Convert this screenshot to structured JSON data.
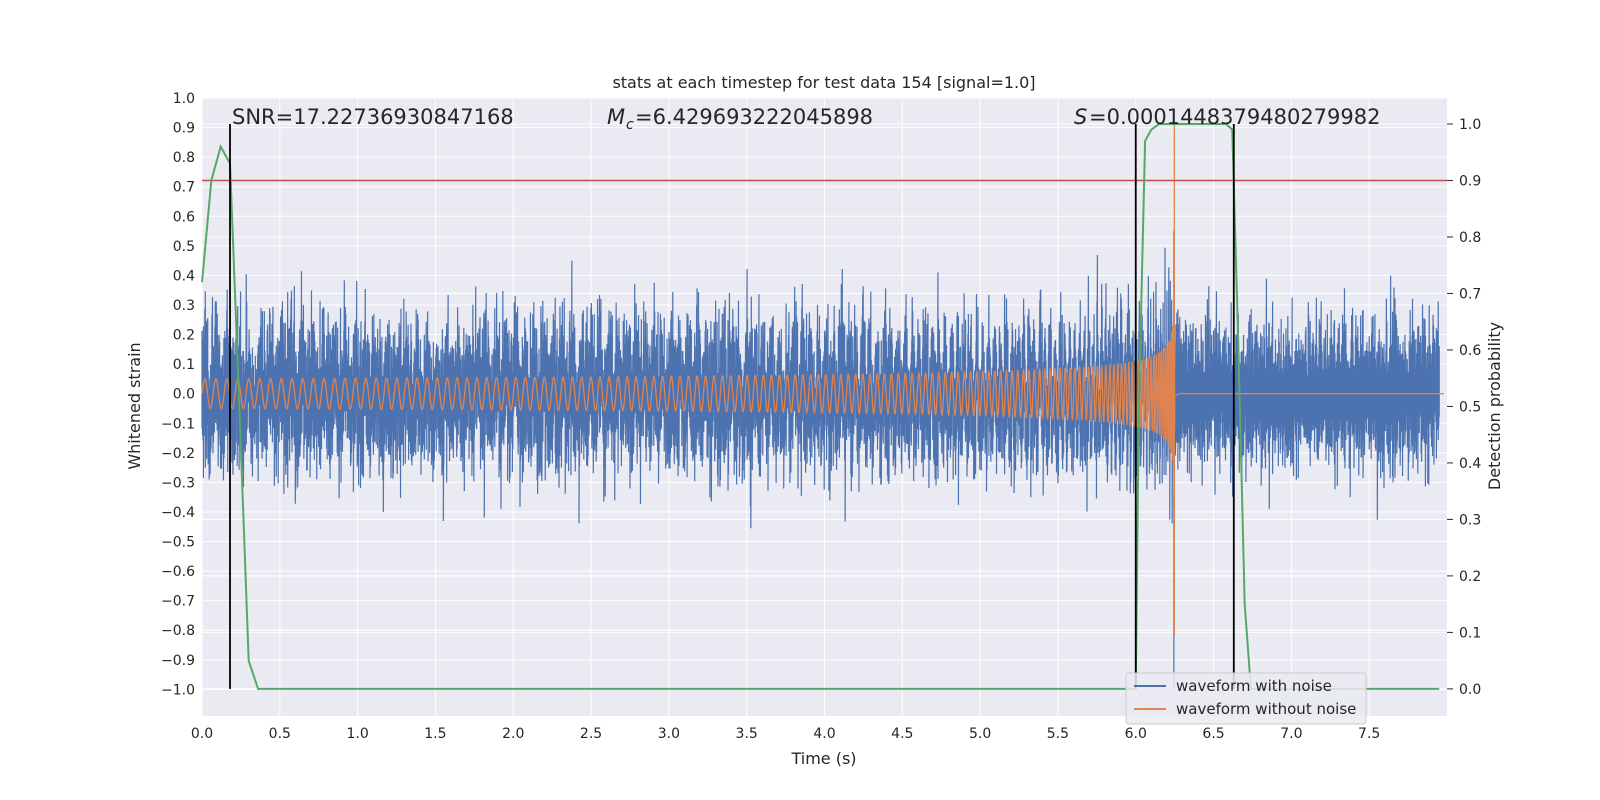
{
  "chart_data": {
    "type": "line",
    "title": "stats at each timestep for test data 154 [signal=1.0]",
    "xlabel": "Time (s)",
    "ylabel_left": "Whitened strain",
    "ylabel_right": "Detection probability",
    "xlim": [
      0.0,
      8.0
    ],
    "ylim_left": [
      -1.09,
      1.0
    ],
    "ylim_right": [
      -0.048,
      1.046
    ],
    "x_ticks": [
      "0.0",
      "0.5",
      "1.0",
      "1.5",
      "2.0",
      "2.5",
      "3.0",
      "3.5",
      "4.0",
      "4.5",
      "5.0",
      "5.5",
      "6.0",
      "6.5",
      "7.0",
      "7.5"
    ],
    "y_ticks_left": [
      "1.0",
      "0.9",
      "0.8",
      "0.7",
      "0.6",
      "0.5",
      "0.4",
      "0.3",
      "0.2",
      "0.1",
      "0.0",
      "−0.1",
      "−0.2",
      "−0.3",
      "−0.4",
      "−0.5",
      "−0.6",
      "−0.7",
      "−0.8",
      "−0.9",
      "−1.0"
    ],
    "y_ticks_right": [
      "1.0",
      "0.9",
      "0.8",
      "0.7",
      "0.6",
      "0.5",
      "0.4",
      "0.3",
      "0.2",
      "0.1",
      "0.0"
    ],
    "annotations": {
      "snr": "SNR=17.22736930847168",
      "mc_value": "=6.429693222045898",
      "s_value": "=0.0001448379480279982"
    },
    "series": [
      {
        "name": "waveform with noise",
        "color": "#4c72b0",
        "noise_amplitude": 0.27,
        "t_end": 8.0
      },
      {
        "name": "waveform without noise",
        "color": "#dd8452",
        "start_amplitude": 0.05,
        "peak_amplitude": 0.95,
        "merger_time": 6.25
      }
    ],
    "detection_probability": {
      "color": "#55a868",
      "t": [
        0.0,
        0.06,
        0.12,
        0.18,
        0.24,
        0.3,
        0.36,
        0.42,
        5.98,
        6.0,
        6.02,
        6.06,
        6.1,
        6.15,
        6.2,
        6.58,
        6.62,
        6.66,
        6.7,
        6.74,
        7.95
      ],
      "p": [
        0.72,
        0.9,
        0.96,
        0.93,
        0.5,
        0.05,
        0.0,
        0.0,
        0.0,
        0.0,
        0.5,
        0.97,
        0.99,
        1.0,
        1.0,
        1.0,
        0.99,
        0.6,
        0.15,
        0.0,
        0.0
      ]
    },
    "threshold": {
      "value": 0.9,
      "color": "#c44e52"
    },
    "vertical_markers": [
      0.18,
      6.0,
      6.63
    ],
    "legend": {
      "location": "lower right",
      "labels": [
        "waveform with noise",
        "waveform without noise"
      ]
    }
  }
}
